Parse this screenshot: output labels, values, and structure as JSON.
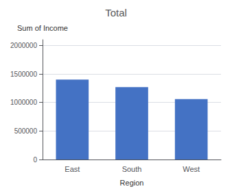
{
  "chart_data": {
    "type": "bar",
    "title": "Total",
    "categories": [
      "East",
      "South",
      "West"
    ],
    "values": [
      1400000,
      1270000,
      1060000
    ],
    "color": "#4472C4",
    "ylabel": "Sum of Income",
    "xlabel": "Region",
    "ylim": [
      0,
      2100000
    ],
    "yticks": [
      0,
      500000,
      1000000,
      1500000,
      2000000
    ],
    "grid": true
  }
}
